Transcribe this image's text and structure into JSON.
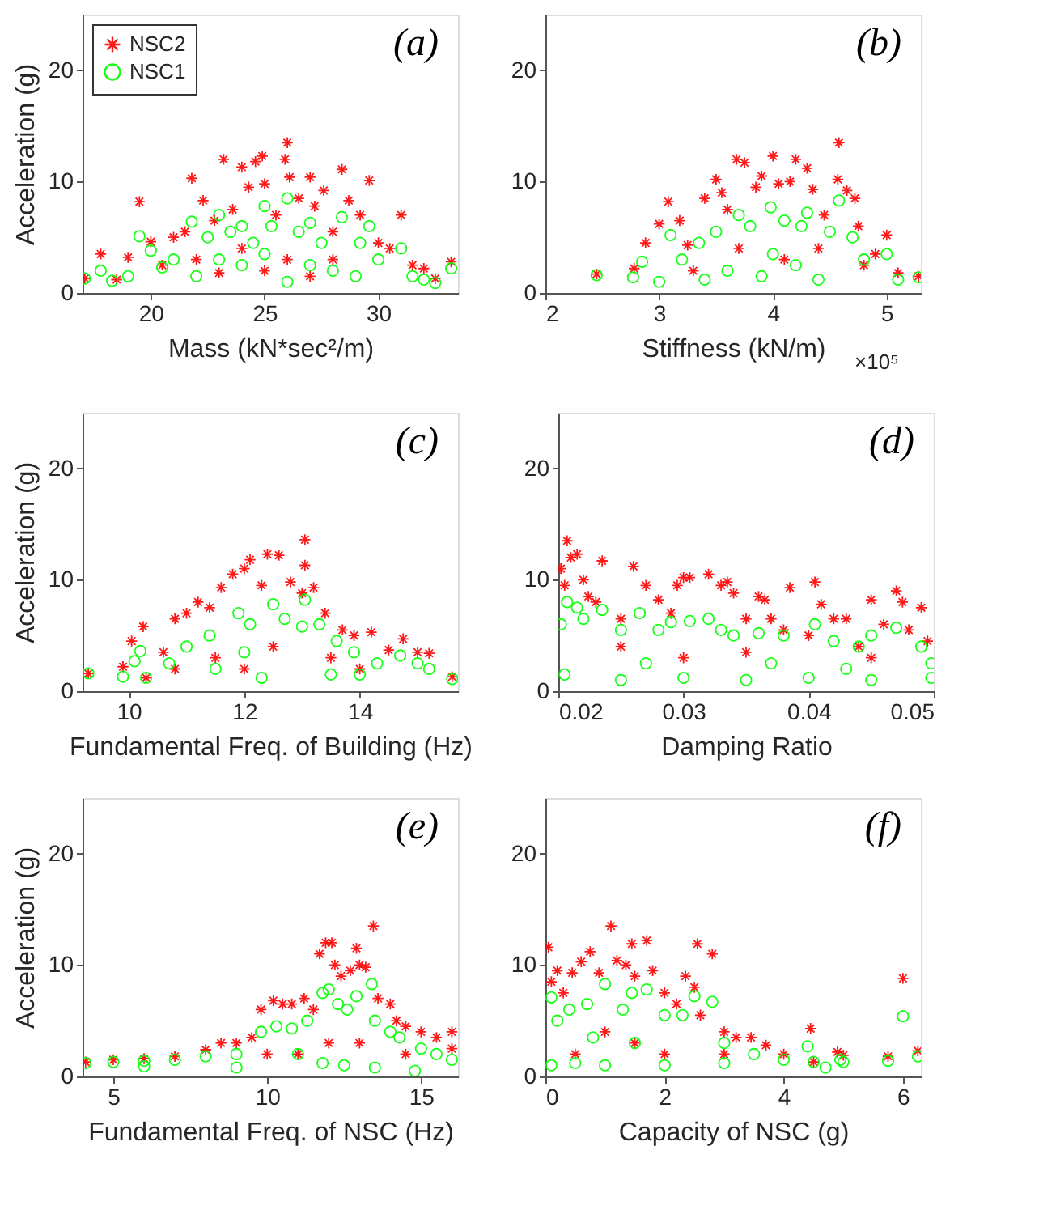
{
  "chart_data": [
    {
      "type": "scatter",
      "title": "(a)",
      "xlabel": "Mass (kN*sec²/m)",
      "ylabel": "Acceleration (g)",
      "xlim": [
        17,
        33.5
      ],
      "xticks": [
        20,
        25,
        30
      ],
      "ylim": [
        0,
        25
      ],
      "yticks": [
        0,
        10,
        20
      ],
      "grid": false,
      "legend": "top left",
      "series": [
        {
          "name": "NSC2",
          "color": "#ff0000",
          "marker": "cross",
          "x": [
            17.1,
            17.8,
            18.5,
            19,
            19.5,
            20,
            20.5,
            21,
            21.5,
            21.8,
            22.3,
            22.8,
            23.2,
            23.6,
            24,
            24.3,
            24.6,
            24.9,
            25,
            25.5,
            25.9,
            26,
            26.1,
            26.5,
            27,
            27.2,
            27.6,
            28,
            28.4,
            28.7,
            29.2,
            29.6,
            30,
            30.5,
            31,
            31.5,
            32,
            32.5,
            33.2,
            24,
            26,
            28,
            22,
            25,
            27,
            23
          ],
          "values": [
            1.3,
            3.5,
            1.2,
            3.2,
            8.2,
            4.6,
            2.5,
            5,
            5.5,
            10.3,
            8.3,
            6.5,
            12,
            7.5,
            11.3,
            9.5,
            11.8,
            12.3,
            9.8,
            7,
            12,
            13.5,
            10.4,
            8.5,
            10.4,
            7.8,
            9.2,
            5.5,
            11.1,
            8.3,
            7,
            10.1,
            4.5,
            4,
            7,
            2.5,
            2.2,
            1.3,
            2.8,
            4,
            3,
            3,
            3,
            2,
            1.5,
            1.8
          ]
        },
        {
          "name": "NSC1",
          "color": "#00ff00",
          "marker": "circle",
          "x": [
            17.1,
            17.8,
            18.3,
            19,
            19.5,
            20,
            20.5,
            21,
            21.8,
            22.5,
            23,
            23.5,
            24,
            24.5,
            25,
            25.3,
            26,
            26.5,
            27,
            27.5,
            28.4,
            29.2,
            29.6,
            30,
            31,
            31.5,
            32,
            32.5,
            33.2,
            22,
            24,
            26,
            27,
            29,
            25,
            23,
            28
          ],
          "values": [
            1.3,
            2,
            1.1,
            1.5,
            5.1,
            3.8,
            2.3,
            3,
            6.4,
            5,
            7,
            5.5,
            6,
            4.5,
            7.8,
            6,
            8.5,
            5.5,
            6.3,
            4.5,
            6.8,
            4.5,
            6,
            3,
            4,
            1.5,
            1.2,
            0.9,
            2.2,
            1.5,
            2.5,
            1,
            2.5,
            1.5,
            3.5,
            3,
            2
          ]
        }
      ]
    },
    {
      "type": "scatter",
      "title": "(b)",
      "xlabel": "Stiffness (kN/m)",
      "annotations": [
        "×10⁵"
      ],
      "xlim": [
        2,
        5.3
      ],
      "xticks": [
        2,
        3,
        4,
        5
      ],
      "ylim": [
        0,
        25
      ],
      "yticks": [
        0,
        10,
        20
      ],
      "grid": false,
      "series": [
        {
          "color": "#ff0000",
          "marker": "cross",
          "x": [
            2.45,
            2.78,
            2.88,
            3,
            3.08,
            3.18,
            3.25,
            3.4,
            3.5,
            3.55,
            3.6,
            3.68,
            3.75,
            3.85,
            3.9,
            4,
            4.05,
            4.15,
            4.2,
            4.3,
            4.35,
            4.45,
            4.58,
            4.57,
            4.65,
            4.72,
            4.75,
            4.9,
            5,
            5.1,
            5.28,
            3.7,
            4.1,
            4.4,
            3.3,
            4.8
          ],
          "values": [
            1.7,
            2.2,
            4.5,
            6.2,
            8.2,
            6.5,
            4.3,
            8.5,
            10.2,
            9,
            7.5,
            12,
            11.7,
            9.5,
            10.5,
            12.3,
            9.8,
            10,
            12,
            11.2,
            9.3,
            7,
            13.5,
            10.2,
            9.2,
            8.5,
            6,
            3.5,
            5.2,
            1.8,
            1.5,
            4,
            3,
            4,
            2,
            2.5
          ]
        },
        {
          "color": "#00ff00",
          "marker": "circle",
          "x": [
            2.45,
            2.77,
            2.85,
            3,
            3.1,
            3.2,
            3.35,
            3.5,
            3.7,
            3.8,
            3.98,
            4.1,
            4.25,
            4.3,
            4.5,
            4.58,
            4.7,
            4.8,
            5,
            5.1,
            5.28,
            3.6,
            3.9,
            4.2,
            4.4,
            3.4,
            4
          ],
          "values": [
            1.6,
            1.4,
            2.8,
            1,
            5.2,
            3,
            4.5,
            5.5,
            7,
            6,
            7.7,
            6.5,
            6,
            7.2,
            5.5,
            8.3,
            5,
            3,
            3.5,
            1.2,
            1.4,
            2,
            1.5,
            2.5,
            1.2,
            1.2,
            3.5
          ]
        }
      ]
    },
    {
      "type": "scatter",
      "title": "(c)",
      "xlabel": "Fundamental Freq. of Building (Hz)",
      "ylabel": "Acceleration (g)",
      "xlim": [
        9.2,
        15.7
      ],
      "xticks": [
        10,
        12,
        14
      ],
      "ylim": [
        0,
        25
      ],
      "yticks": [
        0,
        10,
        20
      ],
      "grid": false,
      "series": [
        {
          "color": "#ff0000",
          "marker": "cross",
          "x": [
            9.3,
            9.9,
            10.05,
            10.25,
            10.3,
            10.6,
            10.8,
            11,
            11.2,
            11.4,
            11.6,
            11.8,
            12,
            12.1,
            12.3,
            12.4,
            12.6,
            12.8,
            13,
            13.05,
            13.05,
            13.2,
            13.4,
            13.7,
            13.9,
            14.2,
            14.5,
            14.75,
            15,
            15.2,
            15.6,
            11.5,
            12.5,
            13.5,
            12,
            14,
            10.8
          ],
          "values": [
            1.6,
            2.2,
            4.5,
            5.8,
            1.2,
            3.5,
            6.5,
            7,
            8,
            7.5,
            9.3,
            10.5,
            11,
            11.8,
            9.5,
            12.3,
            12.2,
            9.8,
            8.8,
            13.6,
            11.3,
            9.3,
            7,
            5.5,
            5,
            5.3,
            3.7,
            4.7,
            3.5,
            3.4,
            1.3,
            3,
            4,
            3,
            2,
            2,
            2
          ]
        },
        {
          "color": "#00ff00",
          "marker": "circle",
          "x": [
            9.3,
            9.9,
            10.1,
            10.2,
            10.3,
            10.7,
            11,
            11.4,
            11.9,
            12.1,
            12.5,
            12.7,
            13,
            13.05,
            13.3,
            13.6,
            13.9,
            14.3,
            14.7,
            15,
            15.2,
            15.6,
            11.5,
            12.3,
            13.5,
            12,
            14
          ],
          "values": [
            1.6,
            1.3,
            2.7,
            3.6,
            1.2,
            2.5,
            4,
            5,
            7,
            6,
            7.8,
            6.5,
            5.8,
            8.2,
            6,
            4.5,
            3.5,
            2.5,
            3.2,
            2.5,
            2,
            1.1,
            2,
            1.2,
            1.5,
            3.5,
            1.5
          ]
        }
      ]
    },
    {
      "type": "scatter",
      "title": "(d)",
      "xlabel": "Damping Ratio",
      "xlim": [
        0.02,
        0.05
      ],
      "xticks": [
        0.02,
        0.03,
        0.04,
        0.05
      ],
      "ylim": [
        0,
        25
      ],
      "yticks": [
        0,
        10,
        20
      ],
      "grid": false,
      "series": [
        {
          "color": "#ff0000",
          "marker": "cross",
          "x": [
            0.0202,
            0.0205,
            0.0207,
            0.021,
            0.0215,
            0.022,
            0.0224,
            0.023,
            0.0235,
            0.025,
            0.026,
            0.027,
            0.028,
            0.029,
            0.0295,
            0.03,
            0.0305,
            0.032,
            0.033,
            0.0335,
            0.034,
            0.035,
            0.036,
            0.0365,
            0.037,
            0.038,
            0.0385,
            0.04,
            0.0405,
            0.041,
            0.042,
            0.043,
            0.044,
            0.045,
            0.046,
            0.047,
            0.0475,
            0.048,
            0.049,
            0.0495,
            0.025,
            0.035,
            0.045,
            0.03
          ],
          "values": [
            11,
            9.5,
            13.5,
            12,
            12.3,
            10,
            8.5,
            8,
            11.7,
            6.5,
            11.2,
            9.5,
            8.2,
            7,
            9.5,
            10.2,
            10.2,
            10.5,
            9.5,
            9.8,
            8.8,
            6.5,
            8.5,
            8.2,
            6.5,
            5.5,
            9.3,
            5,
            9.8,
            7.8,
            6.5,
            6.5,
            4,
            8.2,
            6,
            9,
            8,
            5.5,
            7.5,
            4.5,
            4,
            3.5,
            3,
            3
          ]
        },
        {
          "color": "#00ff00",
          "marker": "circle",
          "x": [
            0.0202,
            0.0207,
            0.0215,
            0.022,
            0.0235,
            0.025,
            0.0265,
            0.028,
            0.029,
            0.0305,
            0.032,
            0.033,
            0.034,
            0.036,
            0.038,
            0.0405,
            0.042,
            0.044,
            0.045,
            0.047,
            0.049,
            0.0498,
            0.0205,
            0.025,
            0.03,
            0.035,
            0.04,
            0.045,
            0.0498,
            0.027,
            0.037,
            0.043
          ],
          "values": [
            6,
            8,
            7.5,
            6.5,
            7.3,
            5.5,
            7,
            5.5,
            6.2,
            6.3,
            6.5,
            5.5,
            5,
            5.2,
            5,
            6,
            4.5,
            4,
            5,
            5.7,
            4,
            2.5,
            1.5,
            1,
            1.2,
            1,
            1.2,
            1,
            1.2,
            2.5,
            2.5,
            2
          ]
        }
      ]
    },
    {
      "type": "scatter",
      "title": "(e)",
      "xlabel": "Fundamental Freq. of NSC (Hz)",
      "ylabel": "Acceleration (g)",
      "xlim": [
        4,
        16.2
      ],
      "xticks": [
        5,
        10,
        15
      ],
      "ylim": [
        0,
        25
      ],
      "yticks": [
        0,
        10,
        20
      ],
      "grid": false,
      "series": [
        {
          "color": "#ff0000",
          "marker": "cross",
          "x": [
            4.1,
            5,
            6,
            7,
            8,
            8.5,
            9,
            9.5,
            9.8,
            10.2,
            10.5,
            10.8,
            11.2,
            11.5,
            11.7,
            11.9,
            12.1,
            12.2,
            12.4,
            12.7,
            12.9,
            13,
            13.2,
            13.45,
            13.6,
            14,
            14.2,
            14.5,
            15,
            15.5,
            16,
            16,
            12,
            11,
            13,
            14.5,
            10
          ],
          "values": [
            1.3,
            1.5,
            1.6,
            1.8,
            2.4,
            3,
            3,
            3.5,
            6,
            6.8,
            6.5,
            6.5,
            7,
            6,
            11,
            12,
            12,
            10,
            9,
            9.5,
            11.5,
            10,
            9.8,
            13.5,
            7,
            6.5,
            5,
            4.5,
            4,
            3.5,
            4,
            2.5,
            3,
            2,
            3,
            2,
            2
          ]
        },
        {
          "color": "#00ff00",
          "marker": "circle",
          "x": [
            4.1,
            5,
            6,
            7,
            8,
            9,
            9.8,
            10.3,
            10.8,
            11.3,
            11.8,
            12,
            12.3,
            12.6,
            12.9,
            13.4,
            13.5,
            14,
            14.3,
            15,
            15.5,
            16,
            11.8,
            12.5,
            13.5,
            14.8,
            9,
            6,
            11
          ],
          "values": [
            1.2,
            1.3,
            1.4,
            1.5,
            1.8,
            2,
            4,
            4.5,
            4.3,
            5,
            7.5,
            7.8,
            6.5,
            6,
            7.2,
            8.3,
            5,
            4,
            3.5,
            2.5,
            2,
            1.5,
            1.2,
            1,
            0.8,
            0.5,
            0.8,
            0.9,
            2
          ]
        }
      ]
    },
    {
      "type": "scatter",
      "title": "(f)",
      "xlabel": "Capacity of NSC (g)",
      "xlim": [
        0,
        6.3
      ],
      "xticks": [
        0,
        2,
        4,
        6
      ],
      "ylim": [
        0,
        25
      ],
      "yticks": [
        0,
        10,
        20
      ],
      "grid": false,
      "series": [
        {
          "color": "#ff0000",
          "marker": "cross",
          "x": [
            0.05,
            0.1,
            0.2,
            0.3,
            0.45,
            0.6,
            0.75,
            0.9,
            1.1,
            1.2,
            1.35,
            1.45,
            1.5,
            1.7,
            1.8,
            2,
            2.2,
            2.35,
            2.5,
            2.55,
            2.8,
            2.6,
            3,
            3.2,
            3.45,
            3.7,
            4,
            4.45,
            4.9,
            5,
            5.75,
            6,
            6.25,
            1,
            1.5,
            0.5,
            2,
            3,
            4.5
          ],
          "values": [
            11.6,
            8.5,
            9.5,
            7.5,
            9.3,
            10.3,
            11.2,
            9.3,
            13.5,
            10.4,
            10,
            11.9,
            9,
            12.2,
            9.5,
            7.5,
            6.5,
            9,
            8,
            11.9,
            11,
            5.5,
            4,
            3.5,
            3.5,
            2.8,
            2,
            4.3,
            2.2,
            1.9,
            1.8,
            8.8,
            2.3,
            4,
            3,
            2,
            2,
            2,
            1.3
          ]
        },
        {
          "color": "#00ff00",
          "marker": "circle",
          "x": [
            0.1,
            0.2,
            0.4,
            0.7,
            1,
            1.3,
            1.45,
            1.7,
            2,
            2.3,
            2.5,
            2.8,
            3,
            3.5,
            4,
            4.4,
            4.5,
            4.7,
            4.95,
            5,
            5.75,
            6,
            6.25,
            0.1,
            0.5,
            1,
            2,
            3,
            1.5,
            0.8
          ],
          "values": [
            7.1,
            5,
            6,
            6.5,
            8.3,
            6,
            7.5,
            7.8,
            5.5,
            5.5,
            7.2,
            6.7,
            3,
            2,
            1.5,
            2.7,
            1.3,
            0.8,
            1.5,
            1.3,
            1.4,
            5.4,
            1.8,
            1,
            1.2,
            1,
            1,
            1.2,
            3,
            3.5
          ]
        }
      ]
    }
  ]
}
